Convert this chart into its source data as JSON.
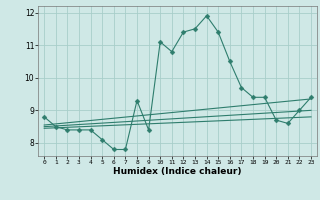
{
  "x": [
    0,
    1,
    2,
    3,
    4,
    5,
    6,
    7,
    8,
    9,
    10,
    11,
    12,
    13,
    14,
    15,
    16,
    17,
    18,
    19,
    20,
    21,
    22,
    23
  ],
  "y_main": [
    8.8,
    8.5,
    8.4,
    8.4,
    8.4,
    8.1,
    7.8,
    7.8,
    9.3,
    8.4,
    11.1,
    10.8,
    11.4,
    11.5,
    11.9,
    11.4,
    10.5,
    9.7,
    9.4,
    9.4,
    8.7,
    8.6,
    9.0,
    9.4
  ],
  "y_line1_start": 8.45,
  "y_line1_end": 8.8,
  "y_line2_start": 8.5,
  "y_line2_end": 9.0,
  "y_line3_start": 8.55,
  "y_line3_end": 9.35,
  "line_color": "#2e7d6d",
  "bg_color": "#cfe8e6",
  "grid_color": "#a8ceca",
  "xlabel": "Humidex (Indice chaleur)",
  "ylim": [
    7.6,
    12.2
  ],
  "xlim": [
    -0.5,
    23.5
  ],
  "yticks": [
    8,
    9,
    10,
    11,
    12
  ],
  "xticks": [
    0,
    1,
    2,
    3,
    4,
    5,
    6,
    7,
    8,
    9,
    10,
    11,
    12,
    13,
    14,
    15,
    16,
    17,
    18,
    19,
    20,
    21,
    22,
    23
  ],
  "marker": "D",
  "marker_size": 2.5,
  "linewidth": 0.8
}
